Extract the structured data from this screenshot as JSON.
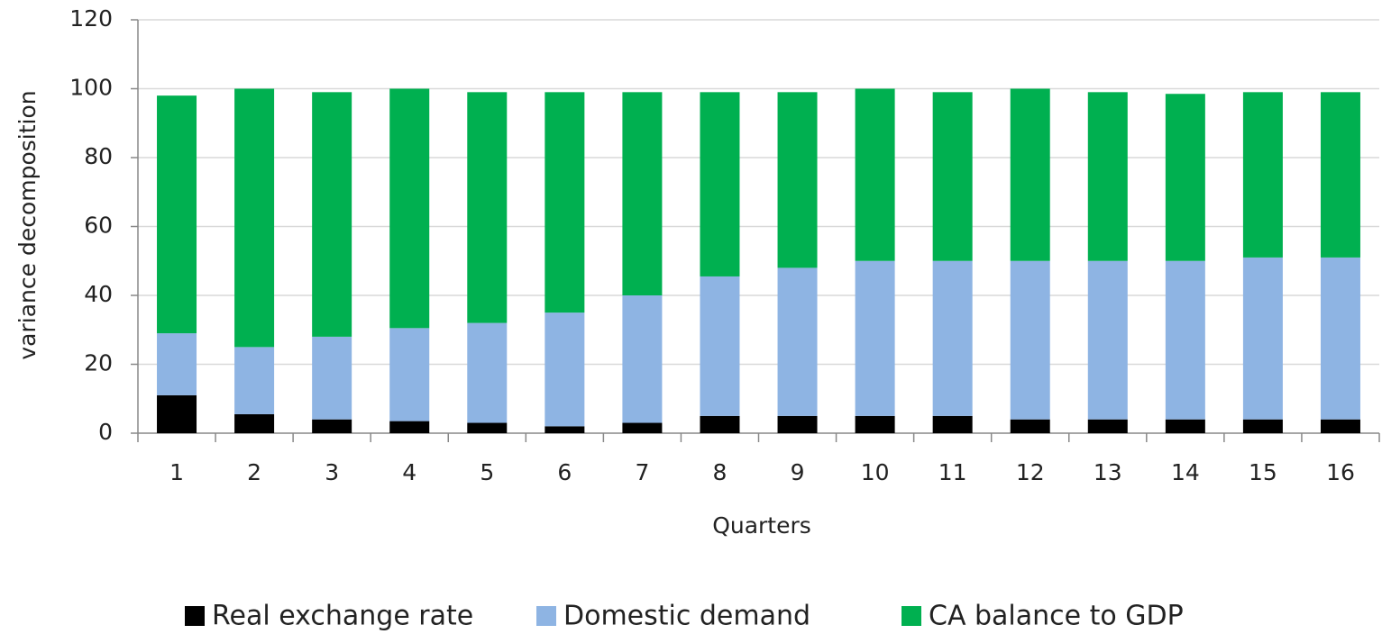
{
  "chart_data": {
    "type": "stacked_bar",
    "x_label": "Quarters",
    "y_label": "variance decomposition",
    "categories": [
      "1",
      "2",
      "3",
      "4",
      "5",
      "6",
      "7",
      "8",
      "9",
      "10",
      "11",
      "12",
      "13",
      "14",
      "15",
      "16"
    ],
    "series": [
      {
        "name": "Real exchange rate",
        "color": "#000000",
        "values": [
          11,
          5.5,
          4,
          3.5,
          3,
          2,
          3,
          5,
          5,
          5,
          5,
          4,
          4,
          4,
          4,
          4
        ]
      },
      {
        "name": "Domestic demand",
        "color": "#8eb4e3",
        "values": [
          18,
          19.5,
          24,
          27,
          29,
          33,
          37,
          40.5,
          43,
          45,
          45,
          46,
          46,
          46,
          47,
          47
        ]
      },
      {
        "name": "CA balance to GDP",
        "color": "#00b050",
        "values": [
          69,
          75,
          71,
          69.5,
          67,
          64,
          59,
          53.5,
          51,
          50,
          49,
          50,
          49,
          48.5,
          48,
          48
        ]
      }
    ],
    "ylim": [
      0,
      120
    ],
    "yticks": [
      0,
      20,
      40,
      60,
      80,
      100,
      120
    ],
    "grid": true
  }
}
